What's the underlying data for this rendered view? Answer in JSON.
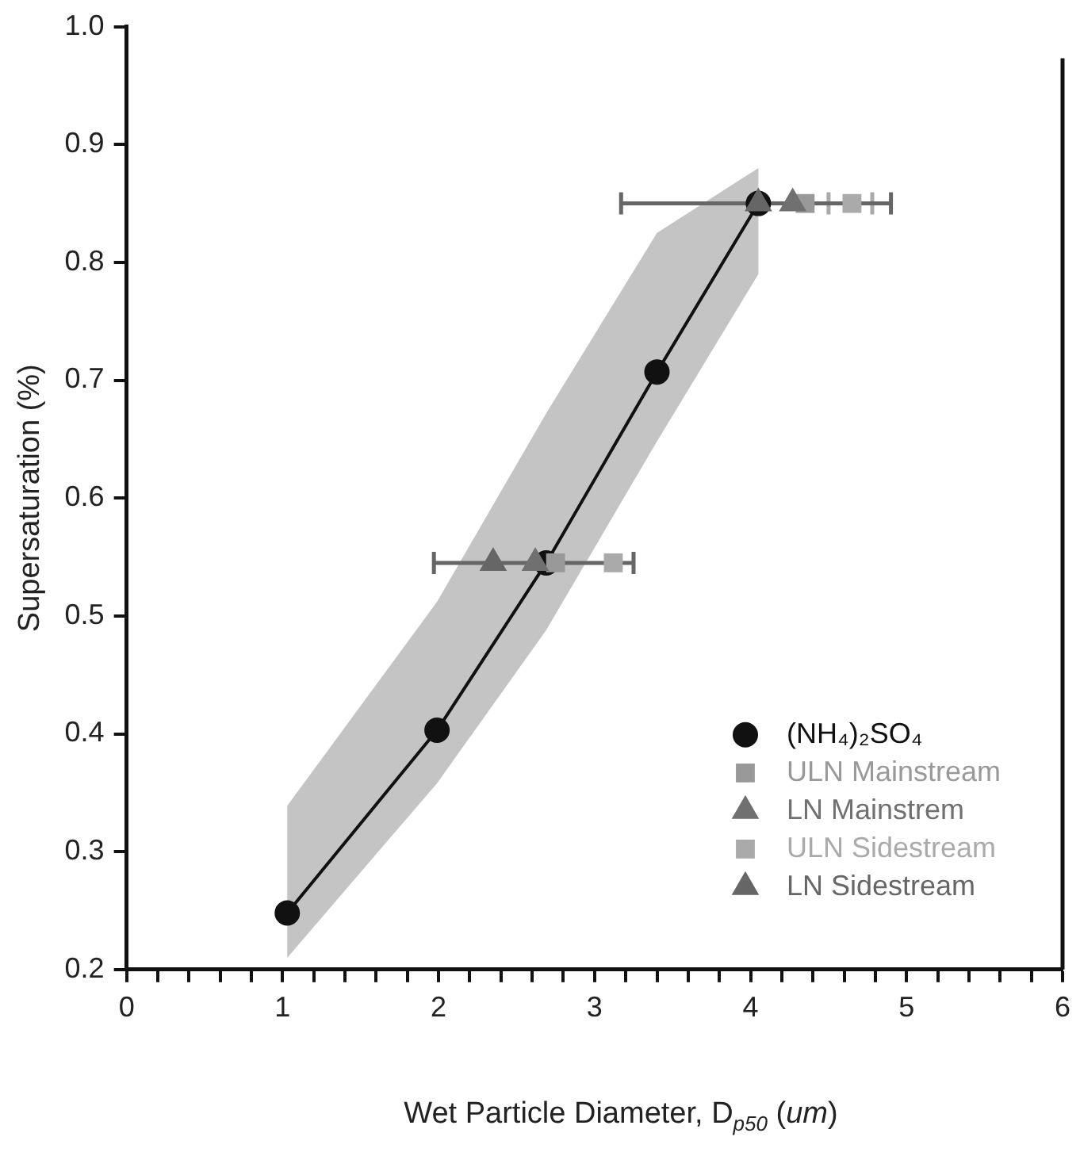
{
  "chart_data": {
    "type": "scatter",
    "xlabel": "Wet Particle Diameter, D$_{p50}$ (um)",
    "ylabel": "Supersaturation (%)",
    "xlim": [
      0,
      6
    ],
    "ylim": [
      0.2,
      1.0
    ],
    "xticks": [
      0,
      {
        "value": 0.2,
        "label": null
      },
      {
        "value": 0.4,
        "label": null
      },
      {
        "value": 0.6,
        "label": null
      },
      {
        "value": 0.8,
        "label": null
      },
      1,
      {
        "value": 1.2,
        "label": null
      },
      {
        "value": 1.4,
        "label": null
      },
      {
        "value": 1.6,
        "label": null
      },
      {
        "value": 1.8,
        "label": null
      },
      2,
      {
        "value": 2.2,
        "label": null
      },
      {
        "value": 2.4,
        "label": null
      },
      {
        "value": 2.6,
        "label": null
      },
      {
        "value": 2.8,
        "label": null
      },
      3,
      {
        "value": 3.2,
        "label": null
      },
      {
        "value": 3.4,
        "label": null
      },
      {
        "value": 3.6,
        "label": null
      },
      {
        "value": 3.8,
        "label": null
      },
      4,
      {
        "value": 4.2,
        "label": null
      },
      {
        "value": 4.4,
        "label": null
      },
      {
        "value": 4.6,
        "label": null
      },
      {
        "value": 4.8,
        "label": null
      },
      5,
      {
        "value": 5.2,
        "label": null
      },
      {
        "value": 5.4,
        "label": null
      },
      {
        "value": 5.6,
        "label": null
      },
      {
        "value": 5.8,
        "label": null
      },
      6
    ],
    "yticks": [
      0.2,
      0.3,
      0.4,
      0.5,
      0.6,
      0.7,
      0.8,
      0.9,
      {
        "value": 1,
        "label": "1.0"
      }
    ],
    "grid": false,
    "legend": "bottom right",
    "series": [
      {
        "name": "(NH₄)₂SO₄",
        "type": "line",
        "color": "#111111",
        "marker": "circle",
        "x": [
          1.03,
          1.99,
          2.69,
          3.4,
          4.05
        ],
        "values": [
          0.248,
          0.403,
          0.545,
          0.707,
          0.85
        ],
        "lower": [
          0.21,
          0.358,
          0.488,
          0.648,
          0.79
        ],
        "upper": [
          0.339,
          0.512,
          0.672,
          0.825,
          0.88
        ]
      },
      {
        "name": "ULN Mainstream",
        "color": "#999999",
        "marker": "square",
        "x": [
          2.75,
          4.35
        ],
        "values": [
          0.545,
          0.85
        ]
      },
      {
        "name": "LN Mainstrem",
        "color": "#707070",
        "marker": "triangle",
        "x": [
          2.62,
          4.27
        ],
        "values": [
          0.545,
          0.85
        ]
      },
      {
        "name": "ULN Sidestream",
        "color": "#aaaaaa",
        "marker": "square",
        "x": [
          3.12,
          4.65
        ],
        "values": [
          0.545,
          0.85
        ],
        "xerrors": [
          null,
          [
            4.5,
            4.78
          ]
        ]
      },
      {
        "name": "LN Sidestream",
        "color": "#666666",
        "marker": "triangle",
        "x": [
          2.35,
          4.05
        ],
        "values": [
          0.545,
          0.85
        ],
        "xerrors": [
          [
            1.97,
            3.25
          ],
          [
            3.17,
            4.9
          ]
        ]
      }
    ]
  }
}
